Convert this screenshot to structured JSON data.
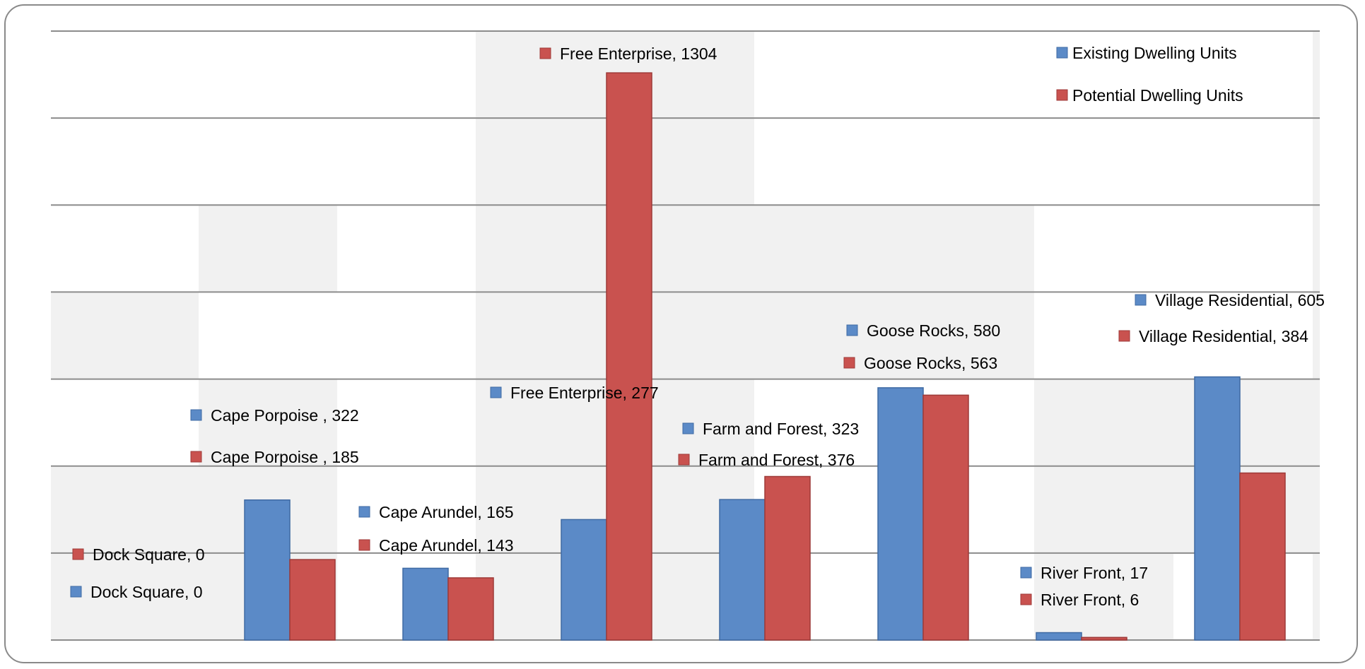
{
  "chart_data": {
    "type": "bar",
    "categories": [
      "Dock Square",
      "Cape Porpoise ",
      "Cape Arundel",
      "Free Enterprise",
      "Farm and Forest",
      "Goose Rocks",
      "River Front",
      "Village Residential"
    ],
    "series": [
      {
        "name": "Existing Dwelling Units",
        "color": "#5b8ac7",
        "values": [
          0,
          322,
          165,
          277,
          323,
          580,
          17,
          605
        ]
      },
      {
        "name": "Potential Dwelling Units",
        "color": "#c9524f",
        "values": [
          0,
          185,
          143,
          1304,
          376,
          563,
          6,
          384
        ]
      }
    ],
    "data_labels": [
      {
        "series": 1,
        "category": 0,
        "text": "Dock Square, 0"
      },
      {
        "series": 0,
        "category": 0,
        "text": "Dock Square, 0"
      },
      {
        "series": 0,
        "category": 1,
        "text": "Cape Porpoise , 322"
      },
      {
        "series": 1,
        "category": 1,
        "text": "Cape Porpoise , 185"
      },
      {
        "series": 0,
        "category": 2,
        "text": "Cape Arundel, 165"
      },
      {
        "series": 1,
        "category": 2,
        "text": "Cape Arundel, 143"
      },
      {
        "series": 1,
        "category": 3,
        "text": "Free Enterprise, 1304"
      },
      {
        "series": 0,
        "category": 3,
        "text": "Free Enterprise, 277"
      },
      {
        "series": 0,
        "category": 4,
        "text": "Farm and Forest, 323"
      },
      {
        "series": 1,
        "category": 4,
        "text": "Farm and Forest, 376"
      },
      {
        "series": 0,
        "category": 5,
        "text": "Goose Rocks, 580"
      },
      {
        "series": 1,
        "category": 5,
        "text": "Goose Rocks, 563"
      },
      {
        "series": 0,
        "category": 6,
        "text": "River Front, 17"
      },
      {
        "series": 1,
        "category": 6,
        "text": "River Front, 6"
      },
      {
        "series": 0,
        "category": 7,
        "text": "Village Residential, 605"
      },
      {
        "series": 1,
        "category": 7,
        "text": "Village Residential, 384"
      }
    ],
    "ylim": [
      0,
      1400
    ],
    "grid": true,
    "legend_position": "top-right",
    "title": "",
    "xlabel": "",
    "ylabel": ""
  }
}
